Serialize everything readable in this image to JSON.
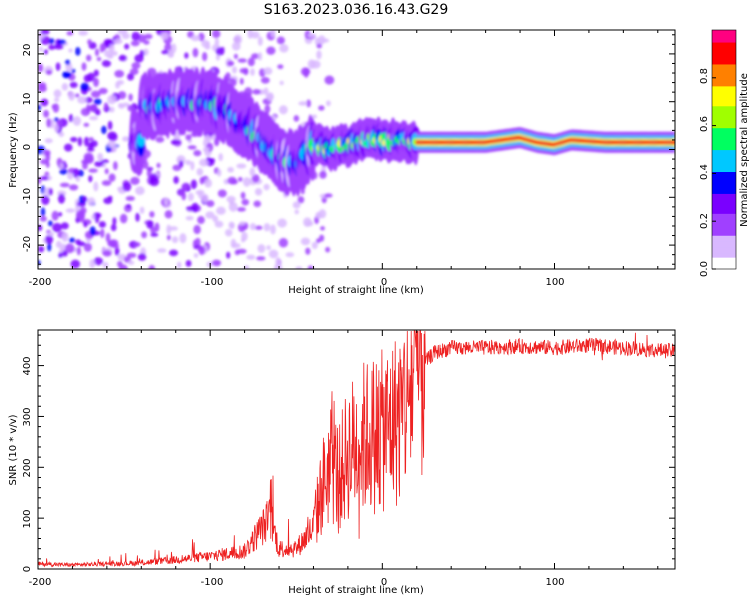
{
  "figure": {
    "title": "S163.2023.036.16.43.G29"
  },
  "chart_data": [
    {
      "type": "heatmap",
      "xlabel": "Height of straight line (km)",
      "ylabel": "Frequency (Hz)",
      "xlim": [
        -200,
        170
      ],
      "ylim": [
        -25,
        25
      ],
      "x_ticks": [
        "-200",
        "-100",
        "0",
        "100"
      ],
      "y_ticks": [
        "20",
        "10",
        "0",
        "-10",
        "-20"
      ],
      "colorbar": {
        "label": "Normalized spectral amplitude",
        "range": [
          0,
          1
        ],
        "ticks": [
          "0.0",
          "0.2",
          "0.4",
          "0.6",
          "0.8"
        ],
        "colors": [
          "#ffffff",
          "#d9b8ff",
          "#a040ff",
          "#7a00ff",
          "#0000ff",
          "#00c8ff",
          "#00ff60",
          "#a0ff00",
          "#ffff00",
          "#ff8000",
          "#ff0000",
          "#ff0080"
        ]
      },
      "ridge": [
        {
          "x": -140,
          "freq": 9
        },
        {
          "x": -130,
          "freq": 9
        },
        {
          "x": -120,
          "freq": 10
        },
        {
          "x": -110,
          "freq": 10
        },
        {
          "x": -100,
          "freq": 10
        },
        {
          "x": -90,
          "freq": 8
        },
        {
          "x": -80,
          "freq": 5
        },
        {
          "x": -70,
          "freq": 2
        },
        {
          "x": -60,
          "freq": -2
        },
        {
          "x": -50,
          "freq": -3
        },
        {
          "x": -40,
          "freq": 1
        },
        {
          "x": -30,
          "freq": 0
        },
        {
          "x": -20,
          "freq": 1
        },
        {
          "x": -10,
          "freq": 2
        },
        {
          "x": 0,
          "freq": 2
        },
        {
          "x": 10,
          "freq": 2
        },
        {
          "x": 20,
          "freq": 1.5
        },
        {
          "x": 40,
          "freq": 1.5
        },
        {
          "x": 60,
          "freq": 1.5
        },
        {
          "x": 80,
          "freq": 2.5
        },
        {
          "x": 90,
          "freq": 1.5
        },
        {
          "x": 100,
          "freq": 1
        },
        {
          "x": 110,
          "freq": 2
        },
        {
          "x": 130,
          "freq": 1.5
        },
        {
          "x": 170,
          "freq": 1.5
        }
      ]
    },
    {
      "type": "line",
      "xlabel": "Height of straight line (km)",
      "ylabel": "SNR (10 * v/v)",
      "xlim": [
        -200,
        170
      ],
      "ylim": [
        0,
        470
      ],
      "x_ticks": [
        "-200",
        "-100",
        "0",
        "100"
      ],
      "y_ticks": [
        "0",
        "100",
        "200",
        "300",
        "400"
      ],
      "series": [
        {
          "color": "#ee2222",
          "envelope": [
            {
              "x": -200,
              "y": 10
            },
            {
              "x": -180,
              "y": 8
            },
            {
              "x": -160,
              "y": 10
            },
            {
              "x": -140,
              "y": 12
            },
            {
              "x": -120,
              "y": 18
            },
            {
              "x": -100,
              "y": 25
            },
            {
              "x": -90,
              "y": 30
            },
            {
              "x": -80,
              "y": 35
            },
            {
              "x": -70,
              "y": 80
            },
            {
              "x": -65,
              "y": 100
            },
            {
              "x": -60,
              "y": 40
            },
            {
              "x": -50,
              "y": 40
            },
            {
              "x": -40,
              "y": 80
            },
            {
              "x": -35,
              "y": 160
            },
            {
              "x": -30,
              "y": 210
            },
            {
              "x": -25,
              "y": 180
            },
            {
              "x": -20,
              "y": 230
            },
            {
              "x": -10,
              "y": 260
            },
            {
              "x": 0,
              "y": 270
            },
            {
              "x": 10,
              "y": 300
            },
            {
              "x": 15,
              "y": 350
            },
            {
              "x": 20,
              "y": 390
            },
            {
              "x": 30,
              "y": 425
            },
            {
              "x": 40,
              "y": 435
            },
            {
              "x": 60,
              "y": 435
            },
            {
              "x": 80,
              "y": 438
            },
            {
              "x": 100,
              "y": 435
            },
            {
              "x": 120,
              "y": 440
            },
            {
              "x": 140,
              "y": 435
            },
            {
              "x": 170,
              "y": 428
            }
          ]
        }
      ]
    }
  ]
}
